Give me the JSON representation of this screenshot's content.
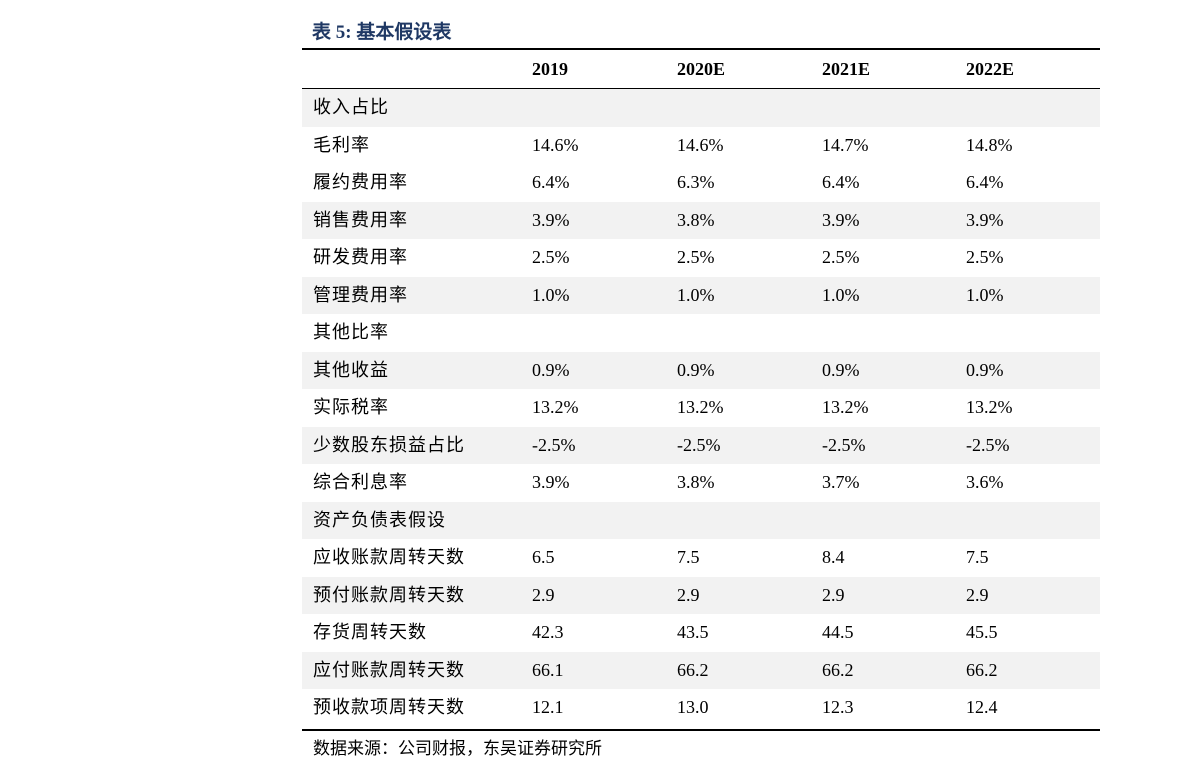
{
  "title": "表 5:  基本假设表",
  "table": {
    "header": [
      "2019",
      "2020E",
      "2021E",
      "2022E"
    ],
    "rows": [
      {
        "label": "收入占比"
      },
      {
        "label": "毛利率",
        "cells": [
          "14.6%",
          "14.6%",
          "14.7%",
          "14.8%"
        ]
      },
      {
        "label": "履约费用率",
        "cells": [
          "6.4%",
          "6.3%",
          "6.4%",
          "6.4%"
        ]
      },
      {
        "label": "销售费用率",
        "cells": [
          "3.9%",
          "3.8%",
          "3.9%",
          "3.9%"
        ]
      },
      {
        "label": "研发费用率",
        "cells": [
          "2.5%",
          "2.5%",
          "2.5%",
          "2.5%"
        ]
      },
      {
        "label": "管理费用率",
        "cells": [
          "1.0%",
          "1.0%",
          "1.0%",
          "1.0%"
        ]
      },
      {
        "label": "其他比率"
      },
      {
        "label": "其他收益",
        "cells": [
          "0.9%",
          "0.9%",
          "0.9%",
          "0.9%"
        ]
      },
      {
        "label": "实际税率",
        "cells": [
          "13.2%",
          "13.2%",
          "13.2%",
          "13.2%"
        ]
      },
      {
        "label": "少数股东损益占比",
        "cells": [
          "-2.5%",
          "-2.5%",
          "-2.5%",
          "-2.5%"
        ]
      },
      {
        "label": "综合利息率",
        "cells": [
          "3.9%",
          "3.8%",
          "3.7%",
          "3.6%"
        ]
      },
      {
        "label": "资产负债表假设"
      },
      {
        "label": "应收账款周转天数",
        "cells": [
          "6.5",
          "7.5",
          "8.4",
          "7.5"
        ]
      },
      {
        "label": "预付账款周转天数",
        "cells": [
          "2.9",
          "2.9",
          "2.9",
          "2.9"
        ]
      },
      {
        "label": "存货周转天数",
        "cells": [
          "42.3",
          "43.5",
          "44.5",
          "45.5"
        ]
      },
      {
        "label": "应付账款周转天数",
        "cells": [
          "66.1",
          "66.2",
          "66.2",
          "66.2"
        ]
      },
      {
        "label": "预收款项周转天数",
        "cells": [
          "12.1",
          "13.0",
          "12.3",
          "12.4"
        ]
      }
    ]
  },
  "source": "数据来源：公司财报，东吴证券研究所"
}
